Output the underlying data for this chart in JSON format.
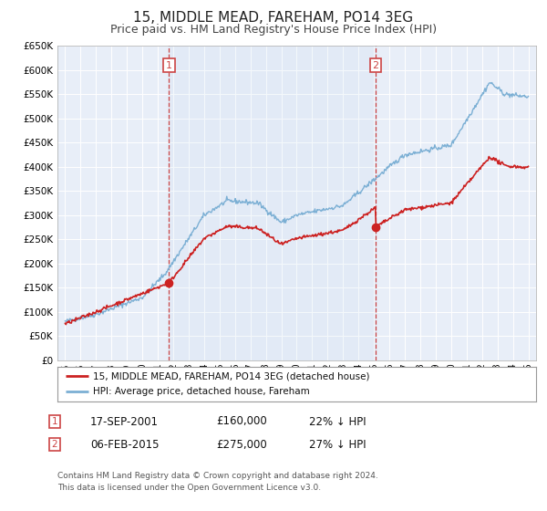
{
  "title": "15, MIDDLE MEAD, FAREHAM, PO14 3EG",
  "subtitle": "Price paid vs. HM Land Registry's House Price Index (HPI)",
  "title_fontsize": 11,
  "subtitle_fontsize": 9,
  "ylim": [
    0,
    650000
  ],
  "yticks": [
    0,
    50000,
    100000,
    150000,
    200000,
    250000,
    300000,
    350000,
    400000,
    450000,
    500000,
    550000,
    600000,
    650000
  ],
  "xlim_start": 1994.5,
  "xlim_end": 2025.5,
  "xticks": [
    1995,
    1996,
    1997,
    1998,
    1999,
    2000,
    2001,
    2002,
    2003,
    2004,
    2005,
    2006,
    2007,
    2008,
    2009,
    2010,
    2011,
    2012,
    2013,
    2014,
    2015,
    2016,
    2017,
    2018,
    2019,
    2020,
    2021,
    2022,
    2023,
    2024,
    2025
  ],
  "hpi_color": "#7bafd4",
  "price_color": "#cc2222",
  "marker_color": "#cc2222",
  "vline_color": "#cc4444",
  "bg_color": "#ffffff",
  "plot_bg_color": "#e8eef8",
  "grid_color": "#ffffff",
  "legend_label_price": "15, MIDDLE MEAD, FAREHAM, PO14 3EG (detached house)",
  "legend_label_hpi": "HPI: Average price, detached house, Fareham",
  "transaction1_label": "1",
  "transaction1_date": "17-SEP-2001",
  "transaction1_price": "£160,000",
  "transaction1_pct": "22% ↓ HPI",
  "transaction1_year": 2001.72,
  "transaction1_value": 160000,
  "transaction2_label": "2",
  "transaction2_date": "06-FEB-2015",
  "transaction2_price": "£275,000",
  "transaction2_pct": "27% ↓ HPI",
  "transaction2_year": 2015.1,
  "transaction2_value": 275000,
  "footer_line1": "Contains HM Land Registry data © Crown copyright and database right 2024.",
  "footer_line2": "This data is licensed under the Open Government Licence v3.0."
}
